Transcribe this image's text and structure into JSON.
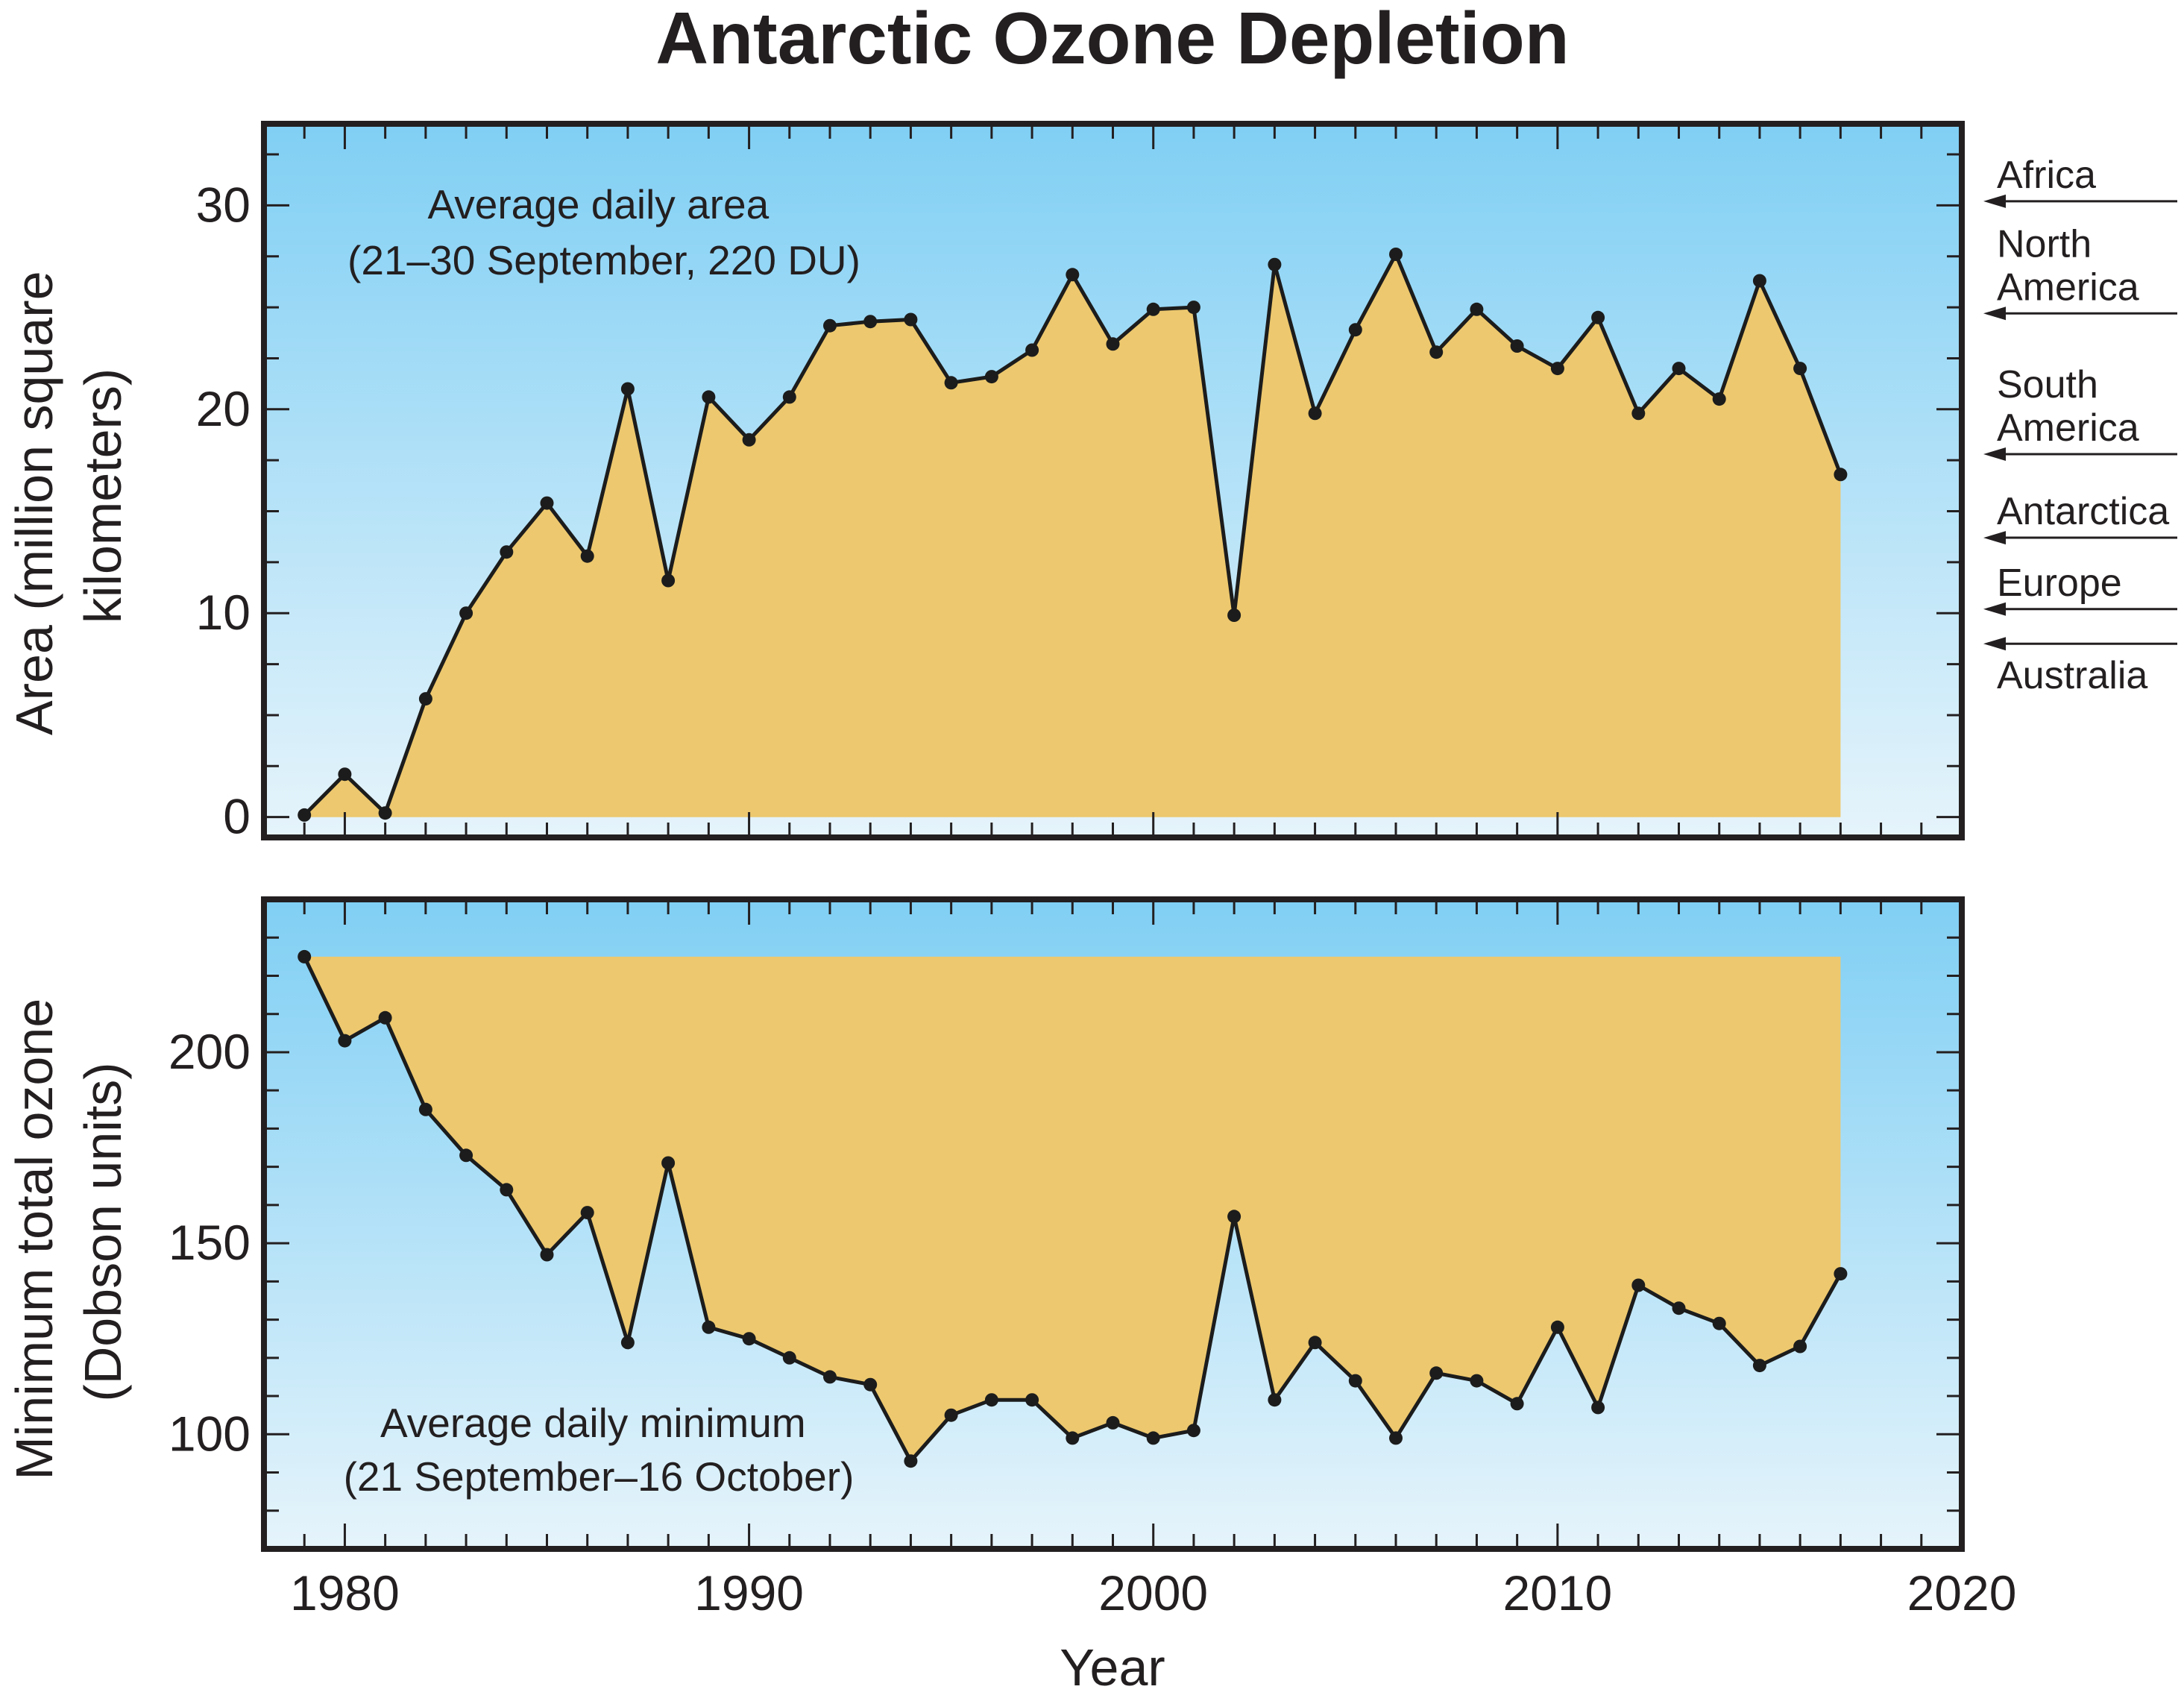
{
  "title": "Antarctic Ozone Depletion",
  "xlabel": "Year",
  "colors": {
    "fill": "#EDC86E",
    "line": "#1c1c1c",
    "background_top": "#80cff4",
    "background_bottom": "#e6f4fb",
    "frame": "#231f20"
  },
  "chart_data": [
    {
      "type": "area",
      "id": "area",
      "ylabel_lines": [
        "Area (million square",
        "kilometers)"
      ],
      "annotation_lines": [
        "Average daily area",
        "(21–30 September, 220 DU)"
      ],
      "xlim": [
        1978,
        2020
      ],
      "ylim": [
        -1,
        34
      ],
      "xticks": [
        1980,
        1990,
        2000,
        2010,
        2020
      ],
      "yticks": [
        0,
        10,
        20,
        30
      ],
      "fill_baseline": 0,
      "x": [
        1979,
        1980,
        1981,
        1982,
        1983,
        1984,
        1985,
        1986,
        1987,
        1988,
        1989,
        1990,
        1991,
        1992,
        1993,
        1994,
        1995,
        1996,
        1997,
        1998,
        1999,
        2000,
        2001,
        2002,
        2003,
        2004,
        2005,
        2006,
        2007,
        2008,
        2009,
        2010,
        2011,
        2012,
        2013,
        2014,
        2015,
        2016,
        2017
      ],
      "y": [
        0.1,
        2.1,
        0.2,
        5.8,
        10.0,
        13.0,
        15.4,
        12.8,
        21.0,
        11.6,
        20.6,
        18.5,
        20.6,
        24.1,
        24.3,
        24.4,
        21.3,
        21.6,
        22.9,
        26.6,
        23.2,
        24.9,
        25.0,
        9.9,
        27.1,
        19.8,
        23.9,
        27.6,
        22.8,
        24.9,
        23.1,
        22.0,
        24.5,
        19.8,
        22.0,
        20.5,
        26.3,
        22.0,
        16.8
      ],
      "reference_levels": [
        {
          "name_lines": [
            "Africa"
          ],
          "value": 30.2
        },
        {
          "name_lines": [
            "North",
            "America"
          ],
          "value": 24.7
        },
        {
          "name_lines": [
            "South",
            "America"
          ],
          "value": 17.8
        },
        {
          "name_lines": [
            "Antarctica"
          ],
          "value": 13.7
        },
        {
          "name_lines": [
            "Europe"
          ],
          "value": 10.2
        },
        {
          "name_lines": [
            "Australia"
          ],
          "value": 8.5
        }
      ]
    },
    {
      "type": "area",
      "id": "ozone",
      "ylabel_lines": [
        "Minimum total ozone",
        "(Dobson units)"
      ],
      "annotation_lines": [
        "Average daily minimum",
        "(21 September–16 October)"
      ],
      "xlim": [
        1978,
        2020
      ],
      "ylim": [
        70,
        240
      ],
      "xticks": [
        1980,
        1990,
        2000,
        2010,
        2020
      ],
      "yticks": [
        100,
        150,
        200
      ],
      "fill_baseline": 225,
      "x": [
        1979,
        1980,
        1981,
        1982,
        1983,
        1984,
        1985,
        1986,
        1987,
        1988,
        1989,
        1990,
        1991,
        1992,
        1993,
        1994,
        1995,
        1996,
        1997,
        1998,
        1999,
        2000,
        2001,
        2002,
        2003,
        2004,
        2005,
        2006,
        2007,
        2008,
        2009,
        2010,
        2011,
        2012,
        2013,
        2014,
        2015,
        2016,
        2017
      ],
      "y": [
        225,
        203,
        209,
        185,
        173,
        164,
        147,
        158,
        124,
        171,
        128,
        125,
        120,
        115,
        113,
        93,
        105,
        109,
        109,
        99,
        103,
        99,
        101,
        157,
        109,
        124,
        114,
        99,
        116,
        114,
        108,
        128,
        107,
        139,
        133,
        129,
        118,
        123,
        142
      ]
    }
  ]
}
